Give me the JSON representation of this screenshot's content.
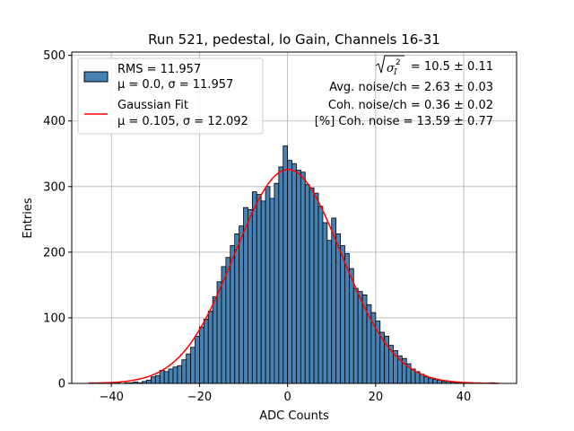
{
  "chart_data": {
    "type": "bar",
    "title": "Run 521, pedestal, lo Gain, Channels 16-31",
    "xlabel": "ADC Counts",
    "ylabel": "Entries",
    "xlim": [
      -49,
      52
    ],
    "ylim": [
      0,
      505
    ],
    "xticks": [
      -40,
      -20,
      0,
      20,
      40
    ],
    "yticks": [
      0,
      100,
      200,
      300,
      400,
      500
    ],
    "grid": true,
    "bin_width": 1,
    "bar_color": "#4682b4",
    "fit_color": "#ff0000",
    "histogram": {
      "name": "RMS = 11.957",
      "name2": "μ = 0.0, σ = 11.957",
      "bin_starts": [
        -45,
        -44,
        -43,
        -42,
        -41,
        -40,
        -39,
        -38,
        -37,
        -36,
        -35,
        -34,
        -33,
        -32,
        -31,
        -30,
        -29,
        -28,
        -27,
        -26,
        -25,
        -24,
        -23,
        -22,
        -21,
        -20,
        -19,
        -18,
        -17,
        -16,
        -15,
        -14,
        -13,
        -12,
        -11,
        -10,
        -9,
        -8,
        -7,
        -6,
        -5,
        -4,
        -3,
        -2,
        -1,
        0,
        1,
        2,
        3,
        4,
        5,
        6,
        7,
        8,
        9,
        10,
        11,
        12,
        13,
        14,
        15,
        16,
        17,
        18,
        19,
        20,
        21,
        22,
        23,
        24,
        25,
        26,
        27,
        28,
        29,
        30,
        31,
        32,
        33,
        34,
        35,
        36,
        37,
        38,
        39,
        40,
        41,
        42,
        43,
        44,
        45,
        46,
        47
      ],
      "counts": [
        1,
        0,
        0,
        1,
        0,
        0,
        1,
        0,
        1,
        1,
        2,
        1,
        3,
        5,
        10,
        12,
        20,
        18,
        22,
        25,
        27,
        36,
        45,
        55,
        72,
        86,
        98,
        110,
        132,
        155,
        178,
        192,
        210,
        228,
        240,
        268,
        265,
        292,
        288,
        278,
        300,
        282,
        305,
        330,
        362,
        340,
        335,
        325,
        322,
        303,
        298,
        290,
        270,
        245,
        218,
        252,
        228,
        210,
        198,
        175,
        145,
        140,
        135,
        120,
        108,
        95,
        78,
        72,
        58,
        50,
        42,
        38,
        30,
        22,
        18,
        14,
        10,
        8,
        6,
        5,
        3,
        3,
        2,
        1,
        1,
        1,
        1,
        0,
        1,
        0,
        0,
        1,
        0,
        0,
        1
      ]
    },
    "fit": {
      "name": "Gaussian Fit",
      "name2": "μ = 0.105, σ = 12.092",
      "mu": 0.105,
      "sigma": 12.092,
      "amplitude": 326,
      "x_range": [
        -45,
        48
      ]
    },
    "legend": "top-left",
    "annotations": {
      "line1_suffix": " = 10.5 ± 0.11",
      "line2": "Avg. noise/ch = 2.63 ± 0.03",
      "line3": "Coh. noise/ch = 0.36 ± 0.02",
      "line4": "[%] Coh. noise = 13.59 ± 0.77"
    }
  }
}
